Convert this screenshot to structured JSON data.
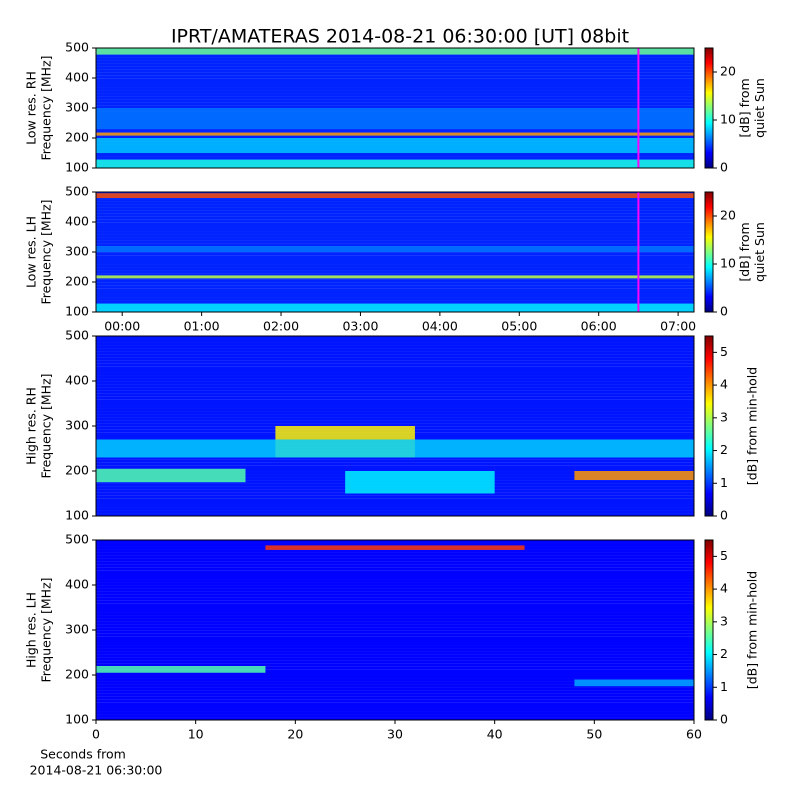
{
  "title": "IPRT/AMATERAS 2014-08-21 06:30:00 [UT]   08bit",
  "chart_data": [
    {
      "type": "heatmap",
      "ylabel": [
        "Low res. RH",
        "Frequency [MHz]"
      ],
      "xlim": [
        -0.33,
        7.2
      ],
      "ylim": [
        100,
        500
      ],
      "yticks": [
        100,
        200,
        300,
        400,
        500
      ],
      "background": 4,
      "bands": [
        {
          "y": [
            478,
            500
          ],
          "level": 12
        },
        {
          "y": [
            150,
            200
          ],
          "level": 8
        },
        {
          "y": [
            208,
            218
          ],
          "level": 18
        },
        {
          "y": [
            230,
            300
          ],
          "level": 6
        },
        {
          "y": [
            100,
            128
          ],
          "level": 10
        }
      ],
      "marker": {
        "x": 6.5,
        "color": "#ff00ff"
      },
      "colorbar": {
        "label": [
          "[dB] from",
          "quiet Sun"
        ],
        "lim": [
          0,
          25
        ],
        "ticks": [
          0,
          10,
          20
        ]
      }
    },
    {
      "type": "heatmap",
      "ylabel": [
        "Low res. LH",
        "Frequency [MHz]"
      ],
      "xlim": [
        -0.33,
        7.2
      ],
      "ylim": [
        100,
        500
      ],
      "xticks": [
        {
          "value": 0,
          "label": "00:00"
        },
        {
          "value": 1,
          "label": "01:00"
        },
        {
          "value": 2,
          "label": "02:00"
        },
        {
          "value": 3,
          "label": "03:00"
        },
        {
          "value": 4,
          "label": "04:00"
        },
        {
          "value": 5,
          "label": "05:00"
        },
        {
          "value": 6,
          "label": "06:00"
        },
        {
          "value": 7,
          "label": "07:00"
        }
      ],
      "yticks": [
        100,
        200,
        300,
        400,
        500
      ],
      "background": 4,
      "bands": [
        {
          "y": [
            480,
            496
          ],
          "level": 20
        },
        {
          "y": [
            212,
            222
          ],
          "level": 14
        },
        {
          "y": [
            300,
            320
          ],
          "level": 6
        },
        {
          "y": [
            100,
            128
          ],
          "level": 9
        }
      ],
      "marker": {
        "x": 6.5,
        "color": "#ff00ff"
      },
      "colorbar": {
        "label": [
          "[dB] from",
          "quiet Sun"
        ],
        "lim": [
          0,
          25
        ],
        "ticks": [
          0,
          10,
          20
        ]
      }
    },
    {
      "type": "heatmap",
      "ylabel": [
        "High res. RH",
        "Frequency [MHz]"
      ],
      "xlim": [
        0,
        60
      ],
      "ylim": [
        100,
        500
      ],
      "yticks": [
        100,
        200,
        300,
        400,
        500
      ],
      "background": 0.8,
      "bands": [
        {
          "y": [
            230,
            300
          ],
          "x": [
            18,
            32
          ],
          "level": 3.5
        },
        {
          "y": [
            230,
            270
          ],
          "x": [
            0,
            60
          ],
          "level": 1.8
        },
        {
          "y": [
            180,
            200
          ],
          "x": [
            48,
            60
          ],
          "level": 4
        },
        {
          "y": [
            175,
            205
          ],
          "x": [
            0,
            15
          ],
          "level": 2.5
        },
        {
          "y": [
            150,
            200
          ],
          "x": [
            25,
            40
          ],
          "level": 2
        }
      ],
      "colorbar": {
        "label": [
          "[dB] from min-hold"
        ],
        "lim": [
          0,
          5.5
        ],
        "ticks": [
          0,
          1,
          2,
          3,
          4,
          5
        ]
      }
    },
    {
      "type": "heatmap",
      "ylabel": [
        "High res. LH",
        "Frequency [MHz]"
      ],
      "xlim": [
        0,
        60
      ],
      "ylim": [
        100,
        500
      ],
      "xticks": [
        0,
        10,
        20,
        30,
        40,
        50,
        60
      ],
      "yticks": [
        100,
        200,
        300,
        400,
        500
      ],
      "xlabel": [
        "Seconds from",
        "2014-08-21 06:30:00"
      ],
      "background": 0.7,
      "bands": [
        {
          "y": [
            478,
            488
          ],
          "x": [
            17,
            43
          ],
          "level": 4.5
        },
        {
          "y": [
            205,
            220
          ],
          "x": [
            0,
            17
          ],
          "level": 2.5
        },
        {
          "y": [
            175,
            190
          ],
          "x": [
            48,
            60
          ],
          "level": 1.6
        }
      ],
      "colorbar": {
        "label": [
          "[dB] from min-hold"
        ],
        "lim": [
          0,
          5.5
        ],
        "ticks": [
          0,
          1,
          2,
          3,
          4,
          5
        ]
      }
    }
  ]
}
